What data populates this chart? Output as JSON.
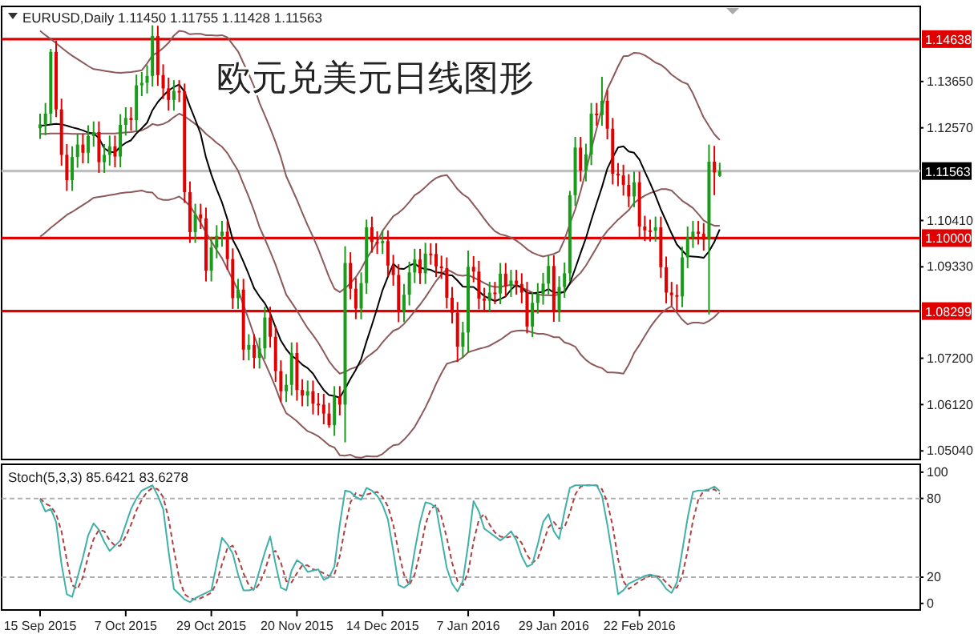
{
  "chart_data": [
    {
      "type": "candlestick",
      "title": "欧元兑美元日线图形",
      "annotations": [
        "EURUSD,Daily  1.11450 1.11755 1.11428 1.11563"
      ],
      "categories": [
        null,
        null,
        null,
        null,
        null,
        null,
        null,
        null,
        null,
        null,
        null,
        null,
        null,
        null,
        null,
        null,
        null,
        null,
        null,
        null,
        null,
        null,
        null,
        null,
        null,
        null,
        null,
        null,
        null,
        null,
        null,
        null,
        null,
        null,
        null,
        null,
        null,
        null,
        null,
        null,
        null,
        null,
        null,
        null,
        null,
        null,
        null,
        null,
        null,
        null,
        null,
        null,
        null,
        null,
        null,
        null,
        null,
        null,
        null,
        null,
        null,
        null,
        null,
        null,
        null,
        null,
        null,
        null,
        null,
        null,
        null,
        null,
        null,
        null,
        null,
        null,
        null,
        null,
        null,
        null,
        null,
        null,
        null,
        null,
        null,
        null,
        null,
        null,
        null,
        null,
        null,
        null,
        null,
        null,
        null,
        null,
        null,
        null,
        null,
        null,
        null,
        null,
        null,
        null,
        null,
        null,
        null,
        null,
        null,
        null,
        null,
        null,
        null,
        null,
        null,
        null,
        null,
        null,
        null,
        null,
        null,
        null,
        null,
        null,
        null,
        null,
        null,
        null
      ],
      "ohlc": [
        [
          1.1256,
          1.129,
          1.1231,
          1.1265
        ],
        [
          1.1265,
          1.1315,
          1.124,
          1.129
        ],
        [
          1.129,
          1.1441,
          1.1265,
          1.1434
        ],
        [
          1.1434,
          1.146,
          1.1282,
          1.13
        ],
        [
          1.13,
          1.1325,
          1.1169,
          1.1194
        ],
        [
          1.1194,
          1.1219,
          1.111,
          1.1135
        ],
        [
          1.1135,
          1.1214,
          1.111,
          1.1189
        ],
        [
          1.1189,
          1.1243,
          1.1164,
          1.1218
        ],
        [
          1.1218,
          1.1243,
          1.1174,
          1.1199
        ],
        [
          1.1199,
          1.1263,
          1.1174,
          1.1238
        ],
        [
          1.1238,
          1.1272,
          1.1213,
          1.1247
        ],
        [
          1.1247,
          1.1272,
          1.1152,
          1.1177
        ],
        [
          1.1177,
          1.1219,
          1.1152,
          1.1194
        ],
        [
          1.1194,
          1.1239,
          1.1169,
          1.1214
        ],
        [
          1.1214,
          1.1239,
          1.1165,
          1.119
        ],
        [
          1.119,
          1.1289,
          1.1165,
          1.1264
        ],
        [
          1.1264,
          1.1305,
          1.1239,
          1.128
        ],
        [
          1.128,
          1.1305,
          1.125,
          1.1275
        ],
        [
          1.1275,
          1.1381,
          1.125,
          1.1356
        ],
        [
          1.1356,
          1.1387,
          1.1331,
          1.1362
        ],
        [
          1.1362,
          1.1403,
          1.1337,
          1.1378
        ],
        [
          1.1378,
          1.1496,
          1.1353,
          1.1471
        ],
        [
          1.1471,
          1.1495,
          1.1355,
          1.138
        ],
        [
          1.138,
          1.1405,
          1.1324,
          1.1349
        ],
        [
          1.1349,
          1.1374,
          1.1297,
          1.1322
        ],
        [
          1.1322,
          1.1368,
          1.1297,
          1.1343
        ],
        [
          1.1343,
          1.1368,
          1.1317,
          1.1342
        ],
        [
          1.1342,
          1.136,
          1.1082,
          1.1107
        ],
        [
          1.1107,
          1.1132,
          1.0989,
          1.1014
        ],
        [
          1.1014,
          1.108,
          1.0989,
          1.1055
        ],
        [
          1.1055,
          1.108,
          1.1021,
          1.1046
        ],
        [
          1.1046,
          1.1071,
          1.0899,
          1.0924
        ],
        [
          1.0924,
          1.1003,
          1.0899,
          1.0978
        ],
        [
          1.0978,
          1.103,
          1.0953,
          1.1005
        ],
        [
          1.1005,
          1.104,
          1.098,
          1.1015
        ],
        [
          1.1015,
          1.104,
          1.0926,
          1.0951
        ],
        [
          1.0951,
          1.0976,
          1.0835,
          1.086
        ],
        [
          1.086,
          1.0905,
          1.0835,
          1.088
        ],
        [
          1.088,
          1.0905,
          1.0715,
          1.074
        ],
        [
          1.074,
          1.0776,
          1.0715,
          1.0751
        ],
        [
          1.0751,
          1.0776,
          1.0696,
          1.0721
        ],
        [
          1.0721,
          1.0768,
          1.0696,
          1.0743
        ],
        [
          1.0743,
          1.084,
          1.0718,
          1.0815
        ],
        [
          1.0815,
          1.084,
          1.0745,
          1.077
        ],
        [
          1.077,
          1.0795,
          1.0665,
          1.069
        ],
        [
          1.069,
          1.0715,
          1.0618,
          1.0643
        ],
        [
          1.0643,
          1.0683,
          1.0618,
          1.0658
        ],
        [
          1.0658,
          1.0757,
          1.0633,
          1.0732
        ],
        [
          1.0732,
          1.0757,
          1.0621,
          1.0646
        ],
        [
          1.0646,
          1.0671,
          1.0608,
          1.0633
        ],
        [
          1.0633,
          1.0668,
          1.0608,
          1.0643
        ],
        [
          1.0643,
          1.0668,
          1.0589,
          1.0614
        ],
        [
          1.0614,
          1.0639,
          1.0587,
          1.0612
        ],
        [
          1.0612,
          1.0637,
          1.0566,
          1.0591
        ],
        [
          1.0591,
          1.0616,
          1.0558,
          1.0564
        ],
        [
          1.0564,
          1.0655,
          1.0539,
          1.063
        ],
        [
          1.063,
          1.0655,
          1.0587,
          1.0612
        ],
        [
          1.0612,
          1.0981,
          1.0524,
          1.0942
        ],
        [
          1.0942,
          1.0967,
          1.0857,
          1.0882
        ],
        [
          1.0882,
          1.0907,
          1.0811,
          1.0836
        ],
        [
          1.0836,
          1.092,
          1.0811,
          1.0895
        ],
        [
          1.0895,
          1.1043,
          1.087,
          1.1025
        ],
        [
          1.1025,
          1.105,
          1.0966,
          1.0991
        ],
        [
          1.0991,
          1.1016,
          1.0963,
          1.0988
        ],
        [
          1.0988,
          1.1018,
          1.0963,
          1.0993
        ],
        [
          1.0993,
          1.1018,
          1.0911,
          1.0936
        ],
        [
          1.0936,
          1.0961,
          1.0889,
          1.0914
        ],
        [
          1.0914,
          1.0939,
          1.0804,
          1.0829
        ],
        [
          1.0829,
          1.0893,
          1.0804,
          1.0868
        ],
        [
          1.0868,
          1.0945,
          1.0843,
          1.092
        ],
        [
          1.092,
          1.0975,
          1.0895,
          1.095
        ],
        [
          1.095,
          1.0975,
          1.0893,
          1.0918
        ],
        [
          1.0918,
          1.0989,
          1.0893,
          1.0964
        ],
        [
          1.0964,
          1.0988,
          1.0938,
          1.0963
        ],
        [
          1.0963,
          1.0988,
          1.0909,
          1.0934
        ],
        [
          1.0934,
          1.0959,
          1.0905,
          1.093
        ],
        [
          1.093,
          1.0955,
          1.0836,
          1.0861
        ],
        [
          1.0861,
          1.0886,
          1.0801,
          1.0826
        ],
        [
          1.0826,
          1.0851,
          1.0711,
          1.0747
        ],
        [
          1.0747,
          1.0805,
          1.0722,
          1.078
        ],
        [
          1.078,
          1.0971,
          1.0733,
          1.0933
        ],
        [
          1.0933,
          1.0958,
          1.0897,
          1.0922
        ],
        [
          1.0922,
          1.0947,
          1.0834,
          1.0859
        ],
        [
          1.0859,
          1.0884,
          1.0829,
          1.0854
        ],
        [
          1.0854,
          1.0898,
          1.0829,
          1.0873
        ],
        [
          1.0873,
          1.0898,
          1.0846,
          1.0871
        ],
        [
          1.0871,
          1.0942,
          1.0846,
          1.0917
        ],
        [
          1.0917,
          1.0942,
          1.0863,
          1.0888
        ],
        [
          1.0888,
          1.0926,
          1.0863,
          1.0901
        ],
        [
          1.0901,
          1.0926,
          1.0868,
          1.0893
        ],
        [
          1.0893,
          1.0918,
          1.0848,
          1.0873
        ],
        [
          1.0873,
          1.0898,
          1.0778,
          1.0794
        ],
        [
          1.0794,
          1.0874,
          1.0769,
          1.0849
        ],
        [
          1.0849,
          1.0895,
          1.0824,
          1.087
        ],
        [
          1.087,
          1.0919,
          1.0845,
          1.0894
        ],
        [
          1.0894,
          1.096,
          1.0869,
          1.0935
        ],
        [
          1.0935,
          1.096,
          1.0805,
          1.083
        ],
        [
          1.083,
          1.0911,
          1.0805,
          1.0886
        ],
        [
          1.0886,
          1.0943,
          1.0861,
          1.0918
        ],
        [
          1.0918,
          1.111,
          1.09,
          1.11
        ],
        [
          1.11,
          1.1236,
          1.1075,
          1.1211
        ],
        [
          1.1211,
          1.1236,
          1.1132,
          1.1157
        ],
        [
          1.1157,
          1.122,
          1.1132,
          1.1195
        ],
        [
          1.1195,
          1.1315,
          1.117,
          1.129
        ],
        [
          1.129,
          1.1315,
          1.1262,
          1.1287
        ],
        [
          1.1287,
          1.1376,
          1.1262,
          1.132
        ],
        [
          1.132,
          1.1345,
          1.123,
          1.1255
        ],
        [
          1.1255,
          1.128,
          1.1125,
          1.115
        ],
        [
          1.115,
          1.1175,
          1.1121,
          1.1146
        ],
        [
          1.1146,
          1.1171,
          1.1099,
          1.1124
        ],
        [
          1.1124,
          1.1149,
          1.1072,
          1.1097
        ],
        [
          1.1097,
          1.1155,
          1.1072,
          1.113
        ],
        [
          1.113,
          1.1155,
          1.1002,
          1.1027
        ],
        [
          1.1027,
          1.1052,
          1.0993,
          1.1018
        ],
        [
          1.1018,
          1.1043,
          1.0992,
          1.1017
        ],
        [
          1.1017,
          1.105,
          1.0992,
          1.1025
        ],
        [
          1.1025,
          1.105,
          1.0907,
          1.0932
        ],
        [
          1.0932,
          1.0957,
          1.0848,
          1.0873
        ],
        [
          1.0873,
          1.0898,
          1.0842,
          1.0867
        ],
        [
          1.0867,
          1.0892,
          1.083,
          1.0864
        ],
        [
          1.0864,
          1.098,
          1.0839,
          1.0955
        ],
        [
          1.0955,
          1.1027,
          1.093,
          1.1002
        ],
        [
          1.1002,
          1.104,
          1.0977,
          1.1015
        ],
        [
          1.1015,
          1.104,
          1.0985,
          1.101
        ],
        [
          1.101,
          1.1035,
          1.0971,
          1.0996
        ],
        [
          1.0996,
          1.1218,
          1.0822,
          1.1178
        ],
        [
          1.1178,
          1.1215,
          1.11,
          1.1153
        ],
        [
          1.1145,
          1.11755,
          1.11428,
          1.11563
        ]
      ],
      "colors": [
        "#1a9b1a",
        "#1a9b1a",
        "#1a9b1a",
        "#e00000",
        "#e00000",
        "#e00000",
        "#1a9b1a",
        "#1a9b1a",
        "#e00000",
        "#1a9b1a",
        "#1a9b1a",
        "#e00000",
        "#1a9b1a",
        "#1a9b1a",
        "#e00000",
        "#1a9b1a",
        "#1a9b1a",
        "#e00000",
        "#1a9b1a",
        "#1a9b1a",
        "#1a9b1a",
        "#1a9b1a",
        "#e00000",
        "#e00000",
        "#e00000",
        "#1a9b1a",
        "#e00000",
        "#e00000",
        "#e00000",
        "#1a9b1a",
        "#e00000",
        "#e00000",
        "#1a9b1a",
        "#1a9b1a",
        "#1a9b1a",
        "#e00000",
        "#e00000",
        "#1a9b1a",
        "#e00000",
        "#1a9b1a",
        "#e00000",
        "#1a9b1a",
        "#1a9b1a",
        "#e00000",
        "#e00000",
        "#e00000",
        "#1a9b1a",
        "#1a9b1a",
        "#e00000",
        "#e00000",
        "#1a9b1a",
        "#e00000",
        "#e00000",
        "#e00000",
        "#e00000",
        "#1a9b1a",
        "#e00000",
        "#1a9b1a",
        "#e00000",
        "#e00000",
        "#1a9b1a",
        "#1a9b1a",
        "#e00000",
        "#e00000",
        "#1a9b1a",
        "#e00000",
        "#e00000",
        "#e00000",
        "#1a9b1a",
        "#1a9b1a",
        "#1a9b1a",
        "#e00000",
        "#1a9b1a",
        "#e00000",
        "#e00000",
        "#e00000",
        "#e00000",
        "#e00000",
        "#e00000",
        "#1a9b1a",
        "#1a9b1a",
        "#e00000",
        "#e00000",
        "#e00000",
        "#1a9b1a",
        "#e00000",
        "#1a9b1a",
        "#e00000",
        "#1a9b1a",
        "#e00000",
        "#e00000",
        "#e00000",
        "#1a9b1a",
        "#1a9b1a",
        "#1a9b1a",
        "#1a9b1a",
        "#e00000",
        "#1a9b1a",
        "#1a9b1a",
        "#1a9b1a",
        "#1a9b1a",
        "#e00000",
        "#1a9b1a",
        "#1a9b1a",
        "#e00000",
        "#1a9b1a",
        "#e00000",
        "#e00000",
        "#e00000",
        "#e00000",
        "#e00000",
        "#1a9b1a",
        "#e00000",
        "#e00000",
        "#e00000",
        "#1a9b1a",
        "#e00000",
        "#e00000",
        "#e00000",
        "#e00000",
        "#1a9b1a",
        "#1a9b1a",
        "#1a9b1a",
        "#e00000",
        "#e00000",
        "#1a9b1a",
        "#e00000",
        "#1a9b1a"
      ],
      "series": [
        {
          "type": "line",
          "color": "#8c5a5a",
          "values": [
            1.1483,
            1.1473,
            1.1464,
            1.1454,
            1.1444,
            1.1434,
            1.1425,
            1.1417,
            1.1409,
            1.1401,
            1.1394,
            1.1392,
            1.139,
            1.1388,
            1.1386,
            1.1385,
            1.1386,
            1.1387,
            1.1389,
            1.1391,
            1.1407,
            1.1426,
            1.1433,
            1.1443,
            1.1455,
            1.1472,
            1.1483,
            1.1481,
            1.1475,
            1.1476,
            1.1476,
            1.1473,
            1.1473,
            1.1472,
            1.1473,
            1.1468,
            1.1451,
            1.1435,
            1.1408,
            1.1382,
            1.1353,
            1.1315,
            1.1286,
            1.1256,
            1.1224,
            1.1188,
            1.1144,
            1.1117,
            1.1089,
            1.1059,
            1.103,
            1.1003,
            1.0974,
            1.0942,
            1.0909,
            1.0882,
            1.0874,
            1.0883,
            1.0895,
            1.0909,
            1.0928,
            1.0952,
            1.0971,
            1.0991,
            1.1017,
            1.1034,
            1.1051,
            1.1059,
            1.107,
            1.1084,
            1.11,
            1.1108,
            1.1119,
            1.1131,
            1.114,
            1.1145,
            1.1147,
            1.1131,
            1.1114,
            1.1102,
            1.1094,
            1.1078,
            1.1062,
            1.1045,
            1.1029,
            1.1016,
            1.1009,
            1.1006,
            1.1001,
            1.0994,
            1.0985,
            1.0974,
            1.0966,
            1.0961,
            1.0957,
            1.096,
            1.0963,
            1.0969,
            1.0997,
            1.1033,
            1.1067,
            1.1109,
            1.1156,
            1.1207,
            1.1255,
            1.1303,
            1.1347,
            1.1373,
            1.14,
            1.1424,
            1.1425,
            1.1432,
            1.1431,
            1.1426,
            1.1418,
            1.1409,
            1.1404,
            1.1394,
            1.1381,
            1.1372,
            1.1364,
            1.1359,
            1.1337,
            1.1309,
            1.1281,
            1.1261,
            1.1242,
            1.1229
          ]
        },
        {
          "type": "line",
          "color": "#8c5a5a",
          "values": [
            1.1243,
            1.1243,
            1.1244,
            1.1244,
            1.1244,
            1.1244,
            1.1243,
            1.1243,
            1.1243,
            1.1243,
            1.1244,
            1.1244,
            1.1244,
            1.1244,
            1.1244,
            1.1245,
            1.1246,
            1.1247,
            1.1249,
            1.1251,
            1.1257,
            1.1266,
            1.1263,
            1.1266,
            1.1272,
            1.1282,
            1.129,
            1.1284,
            1.1275,
            1.1266,
            1.1256,
            1.1243,
            1.1233,
            1.1222,
            1.1213,
            1.1198,
            1.1177,
            1.1157,
            1.1126,
            1.1096,
            1.1063,
            1.1026,
            1.0998,
            1.0969,
            1.0938,
            1.0903,
            1.0868,
            1.085,
            1.0831,
            1.081,
            1.079,
            1.0774,
            1.0756,
            1.0735,
            1.0713,
            1.0697,
            1.0684,
            1.0688,
            1.0695,
            1.0699,
            1.0708,
            1.0722,
            1.0731,
            1.0741,
            1.0757,
            1.0771,
            1.0784,
            1.0789,
            1.08,
            1.0814,
            1.083,
            1.0845,
            1.0862,
            1.0881,
            1.09,
            1.0915,
            1.0927,
            1.0921,
            1.0914,
            1.0912,
            1.0914,
            1.0908,
            1.0902,
            1.0895,
            1.0889,
            1.0886,
            1.0886,
            1.0889,
            1.0891,
            1.0889,
            1.0885,
            1.0879,
            1.0873,
            1.0869,
            1.0867,
            1.0867,
            1.0866,
            1.0869,
            1.0877,
            1.0893,
            1.0907,
            1.0919,
            1.0936,
            1.0957,
            1.0978,
            1.1,
            1.1017,
            1.103,
            1.1043,
            1.1054,
            1.1065,
            1.1082,
            1.1091,
            1.1099,
            1.1105,
            1.1109,
            1.1114,
            1.1114,
            1.1111,
            1.1099,
            1.1087,
            1.1079,
            1.107,
            1.1056,
            1.1041,
            1.1034,
            1.1029,
            1.1029
          ]
        },
        {
          "type": "line",
          "color": "#8c5a5a",
          "values": [
            1.1003,
            1.1013,
            1.1024,
            1.1034,
            1.1044,
            1.1054,
            1.1061,
            1.1069,
            1.1077,
            1.1085,
            1.1094,
            1.1096,
            1.1098,
            1.11,
            1.1102,
            1.1105,
            1.1106,
            1.1107,
            1.1109,
            1.1111,
            1.1107,
            1.1106,
            1.1093,
            1.1089,
            1.1089,
            1.1092,
            1.1097,
            1.1087,
            1.1075,
            1.1056,
            1.1036,
            1.1013,
            1.0993,
            1.0972,
            1.0953,
            1.0928,
            1.0903,
            1.0879,
            1.0844,
            1.081,
            1.0773,
            1.0737,
            1.071,
            1.0682,
            1.0652,
            1.0618,
            1.0592,
            1.0583,
            1.0573,
            1.0561,
            1.055,
            1.0545,
            1.0538,
            1.0528,
            1.0517,
            1.0512,
            1.0494,
            1.0493,
            1.0495,
            1.0489,
            1.0488,
            1.0492,
            1.0491,
            1.0491,
            1.0497,
            1.0508,
            1.0517,
            1.0519,
            1.053,
            1.0544,
            1.056,
            1.0582,
            1.0605,
            1.0631,
            1.066,
            1.0685,
            1.0707,
            1.0711,
            1.0714,
            1.0722,
            1.0734,
            1.0738,
            1.0742,
            1.0745,
            1.0749,
            1.0756,
            1.0763,
            1.0772,
            1.0781,
            1.0784,
            1.0785,
            1.0784,
            1.078,
            1.0777,
            1.0777,
            1.0774,
            1.0769,
            1.0769,
            1.0757,
            1.0753,
            1.0747,
            1.0729,
            1.0716,
            1.0707,
            1.0701,
            1.0697,
            1.0687,
            1.0687,
            1.0686,
            1.0684,
            1.0705,
            1.0732,
            1.0751,
            1.0772,
            1.0792,
            1.0809,
            1.0824,
            1.0834,
            1.0841,
            1.0826,
            1.081,
            1.0799,
            1.0803,
            1.0803,
            1.0801,
            1.0807,
            1.0816,
            1.0829
          ]
        },
        {
          "type": "line",
          "color": "#000000",
          "values": [
            1.1262,
            1.1263,
            1.1265,
            1.1266,
            1.1265,
            1.1262,
            1.1258,
            1.1255,
            1.1251,
            1.1246,
            1.1244,
            1.1233,
            1.1209,
            1.1201,
            1.12,
            1.1213,
            1.1222,
            1.1228,
            1.1244,
            1.1256,
            1.1269,
            1.1298,
            1.1317,
            1.1331,
            1.1344,
            1.1352,
            1.1358,
            1.1341,
            1.1307,
            1.1276,
            1.1243,
            1.1188,
            1.1148,
            1.1114,
            1.1083,
            1.1044,
            1.0996,
            1.0973,
            1.0945,
            1.0915,
            1.0883,
            1.0864,
            1.0848,
            1.0825,
            1.0792,
            1.0761,
            1.0741,
            1.0726,
            1.0717,
            1.0705,
            1.0697,
            1.0684,
            1.0664,
            1.0646,
            1.0634,
            1.0632,
            1.0628,
            1.0649,
            1.0672,
            1.0693,
            1.0718,
            1.0759,
            1.0797,
            1.0837,
            1.0879,
            1.091,
            1.094,
            1.0929,
            1.0928,
            1.0936,
            1.0941,
            1.0931,
            1.0928,
            1.0926,
            1.092,
            1.0919,
            1.0914,
            1.0913,
            1.0901,
            1.0887,
            1.0886,
            1.0886,
            1.0876,
            1.0865,
            1.0859,
            1.0853,
            1.0858,
            1.0864,
            1.088,
            1.0891,
            1.0885,
            1.0872,
            1.0871,
            1.0873,
            1.0875,
            1.0881,
            1.0873,
            1.0873,
            1.0874,
            1.0895,
            1.0929,
            1.0965,
            1.1,
            1.1042,
            1.1081,
            1.1119,
            1.1162,
            1.1188,
            1.1211,
            1.1214,
            1.1202,
            1.1199,
            1.1183,
            1.1155,
            1.1128,
            1.1099,
            1.1067,
            1.1039,
            1.1011,
            1.0985,
            1.0971,
            1.0958,
            1.0957,
            1.0956,
            1.0954,
            1.0969,
            1.0991,
            1.102
          ]
        }
      ],
      "ylim": [
        1.0484,
        1.154
      ],
      "yticks": [
        {
          "value": 1.1365,
          "label": "1.13650"
        },
        {
          "value": 1.1257,
          "label": "1.12570"
        },
        {
          "value": 1.1041,
          "label": "1.10410"
        },
        {
          "value": 1.0933,
          "label": "1.09330"
        },
        {
          "value": 1.072,
          "label": "1.07200"
        },
        {
          "value": 1.0612,
          "label": "1.06120"
        },
        {
          "value": 1.0504,
          "label": "1.05040"
        }
      ],
      "ref_lines": [
        {
          "axis": "y",
          "value": 1.14638,
          "label": "1.14638",
          "color": "#e00000"
        },
        {
          "axis": "y",
          "value": 1.11563,
          "label": "1.11563",
          "color": "#c0c0c0"
        },
        {
          "axis": "y",
          "value": 1.1,
          "label": "1.10000",
          "color": "#e00000"
        },
        {
          "axis": "y",
          "value": 1.08299,
          "label": "1.08299",
          "color": "#e00000"
        }
      ],
      "tick_labels": "y"
    },
    {
      "type": "line",
      "title": "Stoch(5,3,3) 85.6421 83.6278",
      "categories": [
        "15 Sep 2015",
        null,
        null,
        null,
        null,
        null,
        null,
        null,
        null,
        null,
        null,
        null,
        null,
        null,
        null,
        null,
        "7 Oct 2015",
        null,
        null,
        null,
        null,
        null,
        null,
        null,
        null,
        null,
        null,
        null,
        null,
        null,
        null,
        null,
        "29 Oct 2015",
        null,
        null,
        null,
        null,
        null,
        null,
        null,
        null,
        null,
        null,
        null,
        null,
        null,
        null,
        null,
        "20 Nov 2015",
        null,
        null,
        null,
        null,
        null,
        null,
        null,
        null,
        null,
        null,
        null,
        null,
        null,
        null,
        null,
        "14 Dec 2015",
        null,
        null,
        null,
        null,
        null,
        null,
        null,
        null,
        null,
        null,
        null,
        null,
        null,
        null,
        null,
        "7 Jan 2016",
        null,
        null,
        null,
        null,
        null,
        null,
        null,
        null,
        null,
        null,
        null,
        null,
        null,
        null,
        null,
        "29 Jan 2016",
        null,
        null,
        null,
        null,
        null,
        null,
        null,
        null,
        null,
        null,
        null,
        null,
        null,
        null,
        null,
        "22 Feb 2016",
        null,
        null,
        null,
        null,
        null,
        null,
        null,
        null,
        null,
        null,
        null,
        null,
        null,
        null,
        null
      ],
      "series": [
        {
          "color": "#b04040",
          "line_style": "dashed",
          "values": [
            80,
            76,
            74,
            68,
            55,
            33,
            14,
            11,
            20,
            36,
            49,
            56,
            55,
            48,
            44,
            44,
            51,
            60,
            71,
            79,
            85,
            88,
            87,
            81,
            65,
            41,
            19,
            7,
            4,
            3,
            4,
            6,
            8,
            16,
            30,
            42,
            44,
            35,
            23,
            14,
            10,
            15,
            25,
            38,
            40,
            31,
            17,
            16,
            23,
            29,
            29,
            26,
            25,
            23,
            21,
            22,
            36,
            58,
            77,
            84,
            82,
            83,
            84,
            85,
            81,
            74,
            60,
            39,
            22,
            14,
            22,
            39,
            60,
            72,
            75,
            66,
            50,
            31,
            17,
            14,
            24,
            47,
            64,
            68,
            60,
            54,
            51,
            50,
            51,
            51,
            46,
            37,
            31,
            34,
            46,
            58,
            62,
            57,
            58,
            69,
            83,
            89,
            90,
            90,
            90,
            87,
            77,
            59,
            34,
            17,
            11,
            14,
            17,
            19,
            21,
            21,
            20,
            16,
            12,
            12,
            21,
            40,
            63,
            79,
            86,
            86,
            87,
            83.6278
          ]
        },
        {
          "color": "#40b0a8",
          "line_style": "solid",
          "values": [
            79,
            70,
            72,
            62,
            30,
            7,
            5,
            20,
            35,
            52,
            61,
            56,
            47,
            40,
            44,
            48,
            60,
            72,
            80,
            86,
            88,
            90,
            82,
            72,
            40,
            11,
            7,
            3,
            1,
            4,
            6,
            8,
            10,
            30,
            50,
            45,
            38,
            22,
            10,
            10,
            11,
            25,
            39,
            51,
            30,
            12,
            10,
            25,
            33,
            30,
            24,
            25,
            26,
            18,
            20,
            28,
            60,
            86,
            85,
            81,
            79,
            88,
            86,
            82,
            75,
            64,
            40,
            14,
            12,
            15,
            40,
            62,
            77,
            76,
            73,
            50,
            27,
            15,
            9,
            17,
            45,
            78,
            70,
            57,
            54,
            51,
            48,
            51,
            55,
            48,
            36,
            28,
            30,
            45,
            62,
            68,
            55,
            49,
            70,
            88,
            90,
            90,
            90,
            90,
            90,
            82,
            60,
            35,
            7,
            10,
            15,
            17,
            19,
            21,
            22,
            21,
            17,
            11,
            8,
            16,
            40,
            65,
            85,
            86,
            86,
            87,
            89,
            85.6421
          ]
        }
      ],
      "ylim": [
        -5,
        106
      ],
      "yticks": [
        0,
        20,
        80,
        100
      ],
      "ref_lines": [
        {
          "axis": "y",
          "value": 80,
          "color": "#b0b0b0",
          "line_style": "dashed"
        },
        {
          "axis": "y",
          "value": 20,
          "color": "#b0b0b0",
          "line_style": "dashed"
        }
      ]
    }
  ]
}
